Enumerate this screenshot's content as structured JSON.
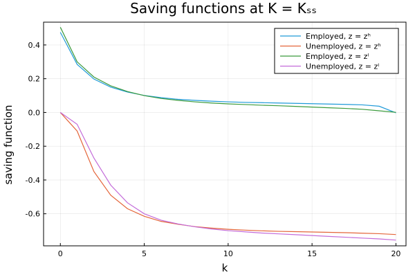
{
  "chart_data": {
    "type": "line",
    "title": "Saving functions at K = Kₛₛ",
    "xlabel": "k",
    "ylabel": "saving function",
    "xlim": [
      -1,
      20.6
    ],
    "ylim": [
      -0.79,
      0.535
    ],
    "xticks": [
      0,
      5,
      10,
      15,
      20
    ],
    "xtick_labels": [
      "0",
      "5",
      "10",
      "15",
      "20"
    ],
    "yticks": [
      -0.6,
      -0.4,
      -0.2,
      0.0,
      0.2,
      0.4
    ],
    "ytick_labels": [
      "-0.6",
      "-0.4",
      "-0.2",
      "0.0",
      "0.2",
      "0.4"
    ],
    "grid": true,
    "legend_position": "top-right",
    "x": [
      0,
      1,
      2,
      3,
      4,
      5,
      6,
      7,
      8,
      9,
      10,
      11,
      12,
      13,
      14,
      15,
      16,
      17,
      18,
      19,
      20
    ],
    "series": [
      {
        "name": "Employed, z = zʰ",
        "color": "#1f9ad8",
        "values": [
          0.475,
          0.285,
          0.198,
          0.15,
          0.121,
          0.101,
          0.088,
          0.078,
          0.072,
          0.067,
          0.063,
          0.06,
          0.058,
          0.056,
          0.054,
          0.052,
          0.05,
          0.048,
          0.045,
          0.037,
          -0.002
        ]
      },
      {
        "name": "Unemployed, z = zʰ",
        "color": "#e4653a",
        "values": [
          0.0,
          -0.11,
          -0.35,
          -0.49,
          -0.57,
          -0.615,
          -0.645,
          -0.662,
          -0.676,
          -0.685,
          -0.692,
          -0.697,
          -0.701,
          -0.704,
          -0.706,
          -0.708,
          -0.71,
          -0.712,
          -0.715,
          -0.718,
          -0.723
        ]
      },
      {
        "name": "Employed, z = zˡ",
        "color": "#3a9a3c",
        "values": [
          0.505,
          0.3,
          0.21,
          0.158,
          0.124,
          0.1,
          0.083,
          0.072,
          0.063,
          0.056,
          0.051,
          0.047,
          0.043,
          0.04,
          0.036,
          0.032,
          0.028,
          0.024,
          0.019,
          0.01,
          0.001
        ]
      },
      {
        "name": "Unemployed, z = zˡ",
        "color": "#c36bd9",
        "values": [
          0.0,
          -0.07,
          -0.27,
          -0.43,
          -0.535,
          -0.6,
          -0.638,
          -0.66,
          -0.677,
          -0.69,
          -0.7,
          -0.707,
          -0.714,
          -0.719,
          -0.724,
          -0.729,
          -0.734,
          -0.739,
          -0.744,
          -0.749,
          -0.756
        ]
      }
    ]
  }
}
